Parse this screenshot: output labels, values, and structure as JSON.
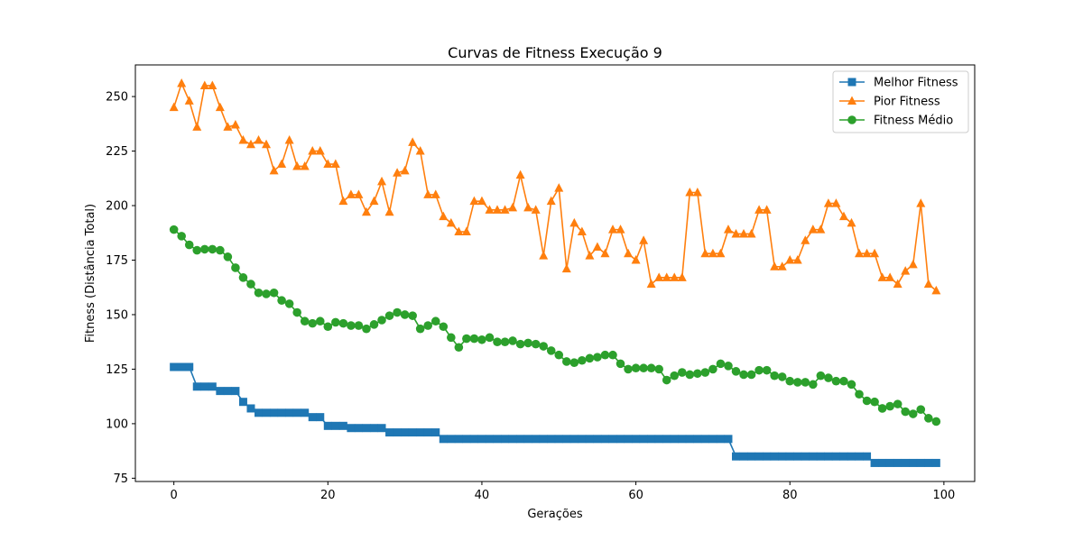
{
  "chart_data": {
    "type": "line",
    "title": "Curvas de Fitness Execução 9",
    "xlabel": "Gerações",
    "ylabel": "Fitness (Distância Total)",
    "xlim": [
      -5.0,
      104.0
    ],
    "ylim": [
      73.5,
      264.5
    ],
    "xticks": [
      0,
      20,
      40,
      60,
      80,
      100
    ],
    "yticks": [
      75,
      100,
      125,
      150,
      175,
      200,
      225,
      250
    ],
    "legend_position": "top-right",
    "series": [
      {
        "name": "Melhor Fitness",
        "color": "#1f77b4",
        "marker": "square",
        "values": [
          126,
          126,
          126,
          117,
          117,
          117,
          115,
          115,
          115,
          110,
          107,
          105,
          105,
          105,
          105,
          105,
          105,
          105,
          103,
          103,
          99,
          99,
          99,
          98,
          98,
          98,
          98,
          98,
          96,
          96,
          96,
          96,
          96,
          96,
          96,
          93,
          93,
          93,
          93,
          93,
          93,
          93,
          93,
          93,
          93,
          93,
          93,
          93,
          93,
          93,
          93,
          93,
          93,
          93,
          93,
          93,
          93,
          93,
          93,
          93,
          93,
          93,
          93,
          93,
          93,
          93,
          93,
          93,
          93,
          93,
          93,
          93,
          93,
          85,
          85,
          85,
          85,
          85,
          85,
          85,
          85,
          85,
          85,
          85,
          85,
          85,
          85,
          85,
          85,
          85,
          85,
          82,
          82,
          82,
          82,
          82,
          82,
          82,
          82,
          82
        ]
      },
      {
        "name": "Pior Fitness",
        "color": "#ff7f0e",
        "marker": "triangle",
        "values": [
          245,
          256,
          248,
          236,
          255,
          255,
          245,
          236,
          237,
          230,
          228,
          230,
          228,
          216,
          219,
          230,
          218,
          218,
          225,
          225,
          219,
          219,
          202,
          205,
          205,
          197,
          202,
          211,
          197,
          215,
          216,
          229,
          225,
          205,
          205,
          195,
          192,
          188,
          188,
          202,
          202,
          198,
          198,
          198,
          199,
          214,
          199,
          198,
          177,
          202,
          208,
          171,
          192,
          188,
          177,
          181,
          178,
          189,
          189,
          178,
          175,
          184,
          164,
          167,
          167,
          167,
          167,
          206,
          206,
          178,
          178,
          178,
          189,
          187,
          187,
          187,
          198,
          198,
          172,
          172,
          175,
          175,
          184,
          189,
          189,
          201,
          201,
          195,
          192,
          178,
          178,
          178,
          167,
          167,
          164,
          170,
          173,
          201,
          164,
          161
        ]
      },
      {
        "name": "Fitness Médio",
        "color": "#2ca02c",
        "marker": "circle",
        "values": [
          189,
          186,
          182,
          179.5,
          180,
          180,
          179.5,
          176.5,
          171.5,
          167,
          164,
          160,
          159.5,
          160,
          156.5,
          155,
          151,
          147,
          146,
          147,
          144.5,
          146.5,
          146,
          145,
          145,
          143.5,
          145.5,
          147.5,
          149.5,
          151,
          150,
          149.5,
          143.5,
          145,
          147,
          144.5,
          139.5,
          135,
          139,
          139,
          138.5,
          139.5,
          137.5,
          137.5,
          138,
          136.5,
          137,
          136.5,
          135.5,
          133.5,
          131.5,
          128.5,
          128,
          129,
          130,
          130.5,
          131.5,
          131.5,
          127.5,
          125,
          125.5,
          125.5,
          125.5,
          125,
          120,
          122,
          123.5,
          122.5,
          123,
          123.5,
          125,
          127.5,
          126.5,
          124,
          122.5,
          122.5,
          124.5,
          124.5,
          122,
          121.5,
          119.5,
          119,
          119,
          118,
          122,
          121,
          119.5,
          119.5,
          118,
          113.5,
          110.5,
          110,
          107,
          108,
          109,
          105.5,
          104.5,
          106.5,
          102.5,
          101
        ]
      }
    ]
  }
}
